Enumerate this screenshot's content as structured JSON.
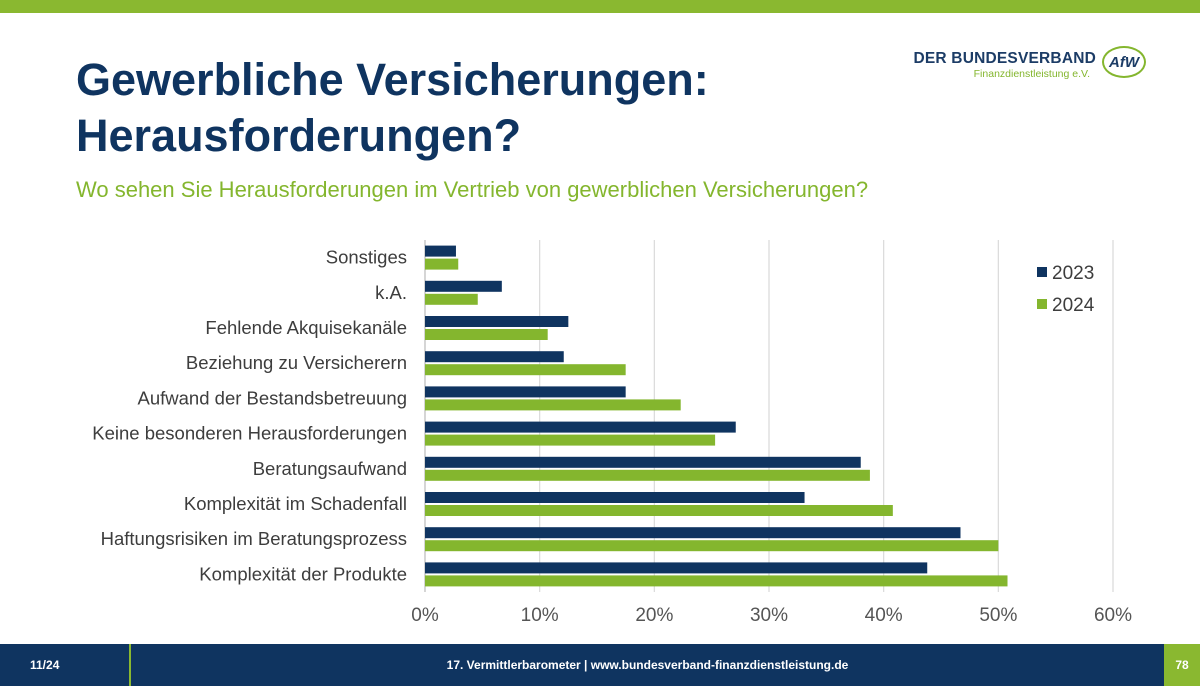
{
  "slide": {
    "title_line1": "Gewerbliche Versicherungen:",
    "title_line2": "Herausforderungen?",
    "subtitle": "Wo sehen Sie Herausforderungen im Vertrieb von gewerblichen Versicherungen?"
  },
  "logo": {
    "main_text": "DER BUNDESVERBAND",
    "sub_text": "Finanzdienstleistung e.V.",
    "mark_text": "AfW"
  },
  "footer": {
    "page_of": "11/24",
    "center_text": "17. Vermittlerbarometer | www.bundesverband-finanzdienstleistung.de",
    "slide_number": "78"
  },
  "colors": {
    "title": "#0f3460",
    "accent_green": "#84b62e",
    "series_2023": "#0f3460",
    "series_2024": "#84b62e",
    "grid": "#d9d9d9",
    "footer_bg": "#0f3460"
  },
  "chart_data": {
    "type": "bar",
    "orientation": "horizontal",
    "categories": [
      "Sonstiges",
      "k.A.",
      "Fehlende Akquisekanäle",
      "Beziehung zu Versicherern",
      "Aufwand der Bestandsbetreuung",
      "Keine besonderen Herausforderungen",
      "Beratungsaufwand",
      "Komplexität im Schadenfall",
      "Haftungsrisiken im Beratungsprozess",
      "Komplexität der Produkte"
    ],
    "series": [
      {
        "name": "2023",
        "values": [
          2.7,
          6.7,
          12.5,
          12.1,
          17.5,
          27.1,
          38.0,
          33.1,
          46.7,
          43.8
        ]
      },
      {
        "name": "2024",
        "values": [
          2.9,
          4.6,
          10.7,
          17.5,
          22.3,
          25.3,
          38.8,
          40.8,
          50.0,
          50.8
        ]
      }
    ],
    "xlim": [
      0,
      60
    ],
    "xticks": [
      "0%",
      "10%",
      "20%",
      "30%",
      "40%",
      "50%",
      "60%"
    ],
    "xlabel": "",
    "ylabel": "",
    "grid": "vertical",
    "legend": "right"
  }
}
